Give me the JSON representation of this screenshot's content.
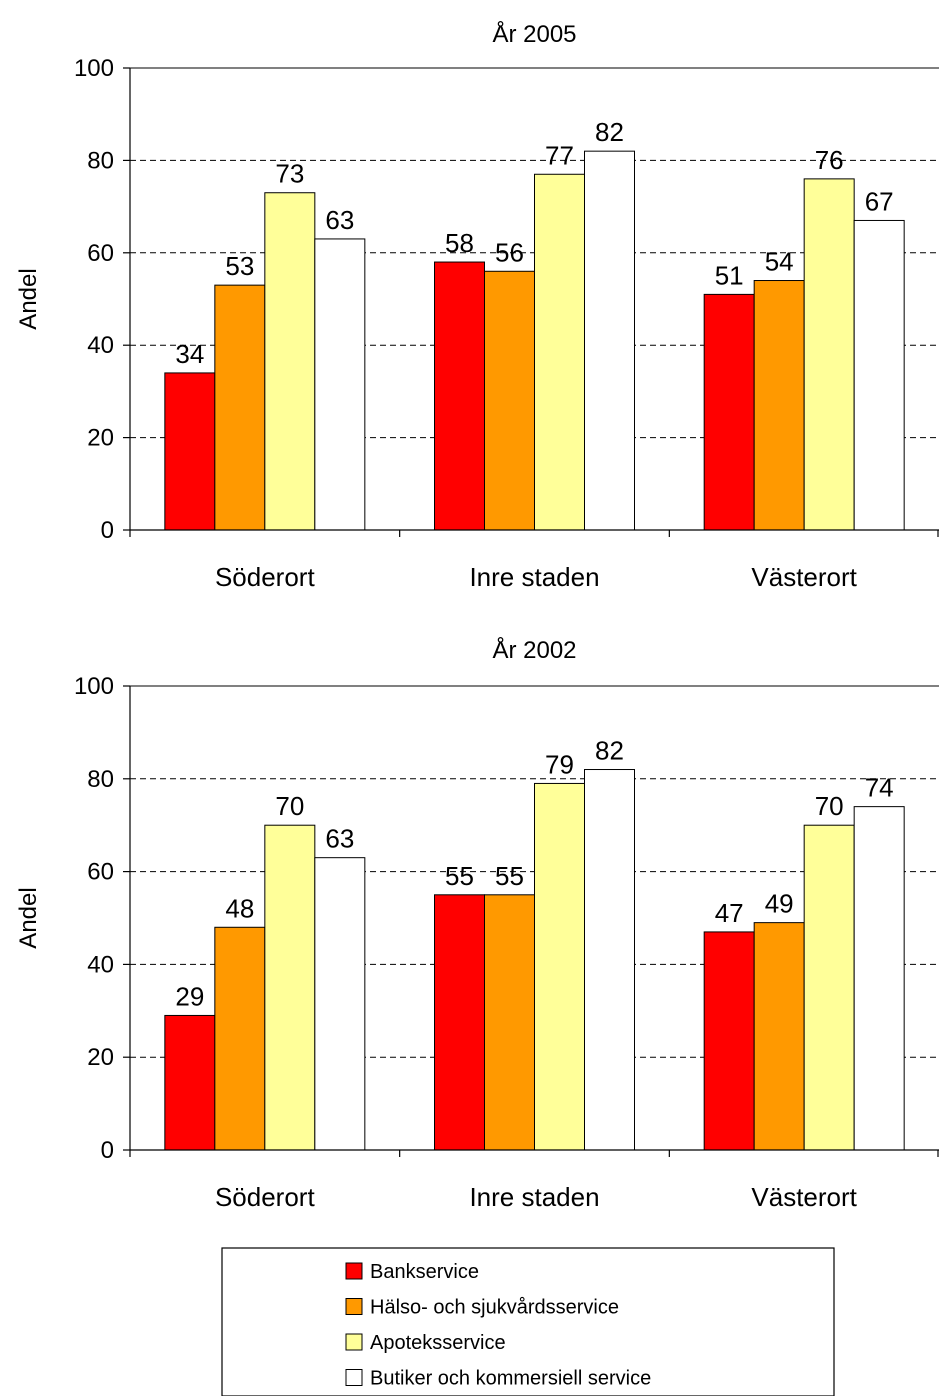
{
  "chart_data": [
    {
      "type": "bar",
      "title": "År 2005",
      "ylabel": "Andel",
      "ylim": [
        0,
        100
      ],
      "yticks": [
        0,
        20,
        40,
        60,
        80,
        100
      ],
      "grid": true,
      "categories": [
        "Söderort",
        "Inre staden",
        "Västerort"
      ],
      "series": [
        {
          "name": "Bankservice",
          "color": "#ff0000",
          "values": [
            34,
            58,
            51
          ],
          "labels": [
            "34",
            "58",
            "51"
          ]
        },
        {
          "name": "Hälso- och sjukvårdsservice",
          "color": "#ff9900",
          "values": [
            53,
            56,
            54
          ],
          "labels": [
            "53",
            "56",
            "54"
          ]
        },
        {
          "name": "Apoteksservice",
          "color": "#ffff99",
          "values": [
            73,
            77,
            76
          ],
          "labels": [
            "73",
            "77",
            "76"
          ]
        },
        {
          "name": "Butiker och kommersiell service",
          "color": "#ffffff",
          "values": [
            63,
            82,
            67
          ],
          "labels": [
            "63",
            "82",
            "67"
          ]
        }
      ]
    },
    {
      "type": "bar",
      "title": "År 2002",
      "ylabel": "Andel",
      "ylim": [
        0,
        100
      ],
      "yticks": [
        0,
        20,
        40,
        60,
        80,
        100
      ],
      "grid": true,
      "categories": [
        "Söderort",
        "Inre staden",
        "Västerort"
      ],
      "series": [
        {
          "name": "Bankservice",
          "color": "#ff0000",
          "values": [
            29,
            55,
            47
          ],
          "labels": [
            "29",
            "55",
            "47"
          ]
        },
        {
          "name": "Hälso- och sjukvårdsservice",
          "color": "#ff9900",
          "values": [
            48,
            55,
            49
          ],
          "labels": [
            "48",
            "55",
            "49"
          ]
        },
        {
          "name": "Apoteksservice",
          "color": "#ffff99",
          "values": [
            70,
            79,
            70
          ],
          "labels": [
            "70",
            "79",
            "70"
          ]
        },
        {
          "name": "Butiker och kommersiell service",
          "color": "#ffffff",
          "values": [
            63,
            82,
            74
          ],
          "labels": [
            "63",
            "82",
            "74"
          ]
        }
      ]
    }
  ],
  "legend": {
    "placement": "bottom-center",
    "items": [
      {
        "label": "Bankservice",
        "color": "#ff0000"
      },
      {
        "label": "Hälso- och sjukvårdsservice",
        "color": "#ff9900"
      },
      {
        "label": "Apoteksservice",
        "color": "#ffff99"
      },
      {
        "label": "Butiker och kommersiell service",
        "color": "#ffffff"
      }
    ]
  }
}
